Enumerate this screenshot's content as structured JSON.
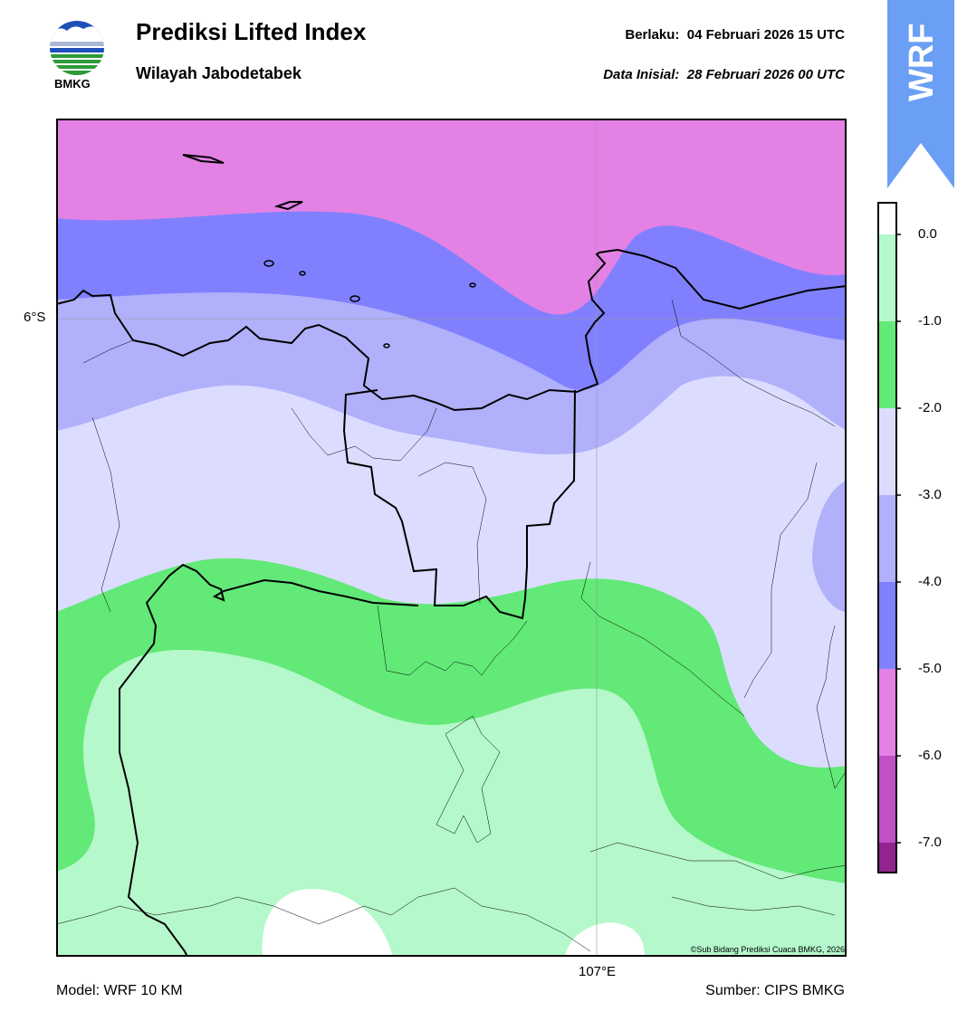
{
  "header": {
    "title": "Prediksi Lifted Index",
    "subtitle": "Wilayah Jabodetabek",
    "valid_label": "Berlaku:",
    "valid_time": "04 Februari 2026 15 UTC",
    "init_label": "Data Inisial:",
    "init_time": "28 Februari 2026 00 UTC"
  },
  "logo": {
    "text": "BMKG",
    "icon": "bmkg-logo-icon"
  },
  "badge": {
    "text": "WRF",
    "color": "#6b9ff5",
    "icon": "up-arrow-icon"
  },
  "map": {
    "lat_label": "6°S",
    "lon_label": "107°E",
    "credit": "©Sub Bidang Prediksi Cuaca BMKG, 2026"
  },
  "colorbar": {
    "ticks": [
      "0.0",
      "-1.0",
      "-2.0",
      "-3.0",
      "-4.0",
      "-5.0",
      "-6.0",
      "-7.0"
    ],
    "colors": {
      "above_0": "#ffffff",
      "0_to_-1": "#b5f8cb",
      "-1_to_-2": "#62e977",
      "-2_to_-3": "#dcdcff",
      "-3_to_-4": "#b0b0fb",
      "-4_to_-5": "#8080ff",
      "-5_to_-6": "#e481e5",
      "-6_to_-7": "#c150c4",
      "below_-7": "#92248f"
    }
  },
  "footer": {
    "model": "Model: WRF 10 KM",
    "source": "Sumber: CIPS BMKG"
  }
}
